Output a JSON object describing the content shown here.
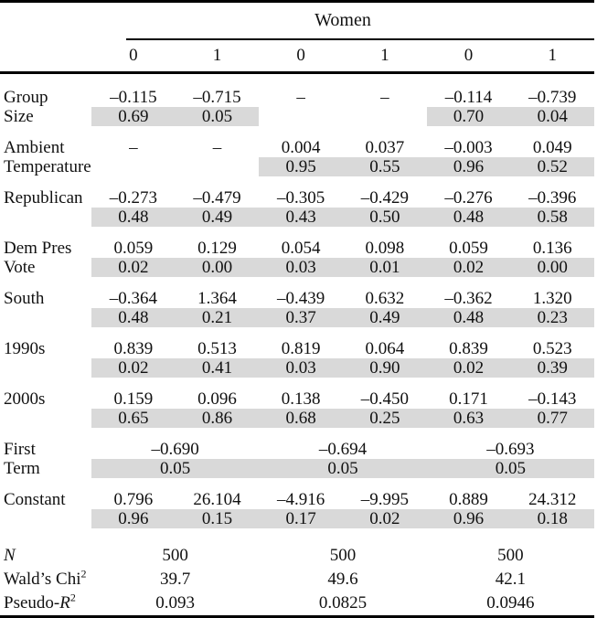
{
  "header": {
    "group_label": "Women",
    "col_labels": [
      "0",
      "1",
      "0",
      "1",
      "0",
      "1"
    ]
  },
  "rows": [
    {
      "label": [
        "Group",
        "Size"
      ],
      "coefs": [
        "–0.115",
        "–0.715",
        "–",
        "–",
        "–0.114",
        "–0.739"
      ],
      "pvals": [
        "0.69",
        "0.05",
        "",
        "",
        "0.70",
        "0.04"
      ],
      "shade": [
        1,
        1,
        0,
        0,
        1,
        1
      ],
      "span": 1
    },
    {
      "label": [
        "Ambient",
        "Temperature"
      ],
      "coefs": [
        "–",
        "–",
        "0.004",
        "0.037",
        "–0.003",
        "0.049"
      ],
      "pvals": [
        "",
        "",
        "0.95",
        "0.55",
        "0.96",
        "0.52"
      ],
      "shade": [
        0,
        0,
        1,
        1,
        1,
        1
      ],
      "span": 1
    },
    {
      "label": [
        "Republican"
      ],
      "coefs": [
        "–0.273",
        "–0.479",
        "–0.305",
        "–0.429",
        "–0.276",
        "–0.396"
      ],
      "pvals": [
        "0.48",
        "0.49",
        "0.43",
        "0.50",
        "0.48",
        "0.58"
      ],
      "shade": [
        1,
        1,
        1,
        1,
        1,
        1
      ],
      "span": 1
    },
    {
      "label": [
        "Dem Pres",
        "Vote"
      ],
      "coefs": [
        "0.059",
        "0.129",
        "0.054",
        "0.098",
        "0.059",
        "0.136"
      ],
      "pvals": [
        "0.02",
        "0.00",
        "0.03",
        "0.01",
        "0.02",
        "0.00"
      ],
      "shade": [
        1,
        1,
        1,
        1,
        1,
        1
      ],
      "span": 1
    },
    {
      "label": [
        "South"
      ],
      "coefs": [
        "–0.364",
        "1.364",
        "–0.439",
        "0.632",
        "–0.362",
        "1.320"
      ],
      "pvals": [
        "0.48",
        "0.21",
        "0.37",
        "0.49",
        "0.48",
        "0.23"
      ],
      "shade": [
        1,
        1,
        1,
        1,
        1,
        1
      ],
      "span": 1
    },
    {
      "label": [
        "1990s"
      ],
      "coefs": [
        "0.839",
        "0.513",
        "0.819",
        "0.064",
        "0.839",
        "0.523"
      ],
      "pvals": [
        "0.02",
        "0.41",
        "0.03",
        "0.90",
        "0.02",
        "0.39"
      ],
      "shade": [
        1,
        1,
        1,
        1,
        1,
        1
      ],
      "span": 1
    },
    {
      "label": [
        "2000s"
      ],
      "coefs": [
        "0.159",
        "0.096",
        "0.138",
        "–0.450",
        "0.171",
        "–0.143"
      ],
      "pvals": [
        "0.65",
        "0.86",
        "0.68",
        "0.25",
        "0.63",
        "0.77"
      ],
      "shade": [
        1,
        1,
        1,
        1,
        1,
        1
      ],
      "span": 1
    },
    {
      "label": [
        "First",
        "Term"
      ],
      "coefs": [
        "–0.690",
        "–0.694",
        "–0.693"
      ],
      "pvals": [
        "0.05",
        "0.05",
        "0.05"
      ],
      "shade": [
        1,
        1,
        1
      ],
      "span": 2
    },
    {
      "label": [
        "Constant"
      ],
      "coefs": [
        "0.796",
        "26.104",
        "–4.916",
        "–9.995",
        "0.889",
        "24.312"
      ],
      "pvals": [
        "0.96",
        "0.15",
        "0.17",
        "0.02",
        "0.96",
        "0.18"
      ],
      "shade": [
        1,
        1,
        1,
        1,
        1,
        1
      ],
      "span": 1
    }
  ],
  "stats": [
    {
      "label": {
        "italic": "N"
      },
      "values": [
        "500",
        "500",
        "500"
      ]
    },
    {
      "label": {
        "pre": "Wald’s Chi",
        "sup": "2"
      },
      "values": [
        "39.7",
        "49.6",
        "42.1"
      ]
    },
    {
      "label": {
        "pre": "Pseudo-",
        "italic": "R",
        "sup": "2"
      },
      "values": [
        "0.093",
        "0.0825",
        "0.0946"
      ]
    }
  ]
}
